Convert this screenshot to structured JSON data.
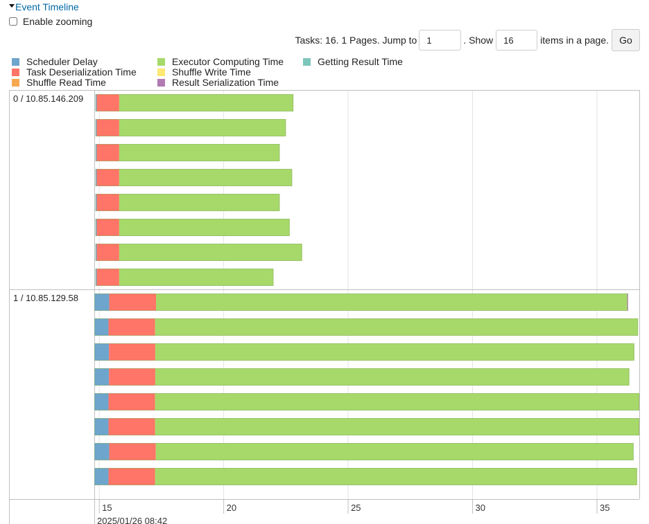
{
  "section": {
    "title": "Event Timeline"
  },
  "zoom": {
    "label": "Enable zooming",
    "checked": false
  },
  "pager": {
    "prefix": "Tasks: 16. 1 Pages. Jump to",
    "page_value": "1",
    "mid": ". Show",
    "size_value": "16",
    "suffix": "items in a page.",
    "go_label": "Go"
  },
  "legend": [
    {
      "label": "Scheduler Delay",
      "color": "#6ea5cc"
    },
    {
      "label": "Task Deserialization Time",
      "color": "#ff7567"
    },
    {
      "label": "Shuffle Read Time",
      "color": "#f6a850"
    },
    {
      "label": "Executor Computing Time",
      "color": "#a6d96a"
    },
    {
      "label": "Shuffle Write Time",
      "color": "#ffe873"
    },
    {
      "label": "Result Serialization Time",
      "color": "#b27ab3"
    },
    {
      "label": "Getting Result Time",
      "color": "#7cc6bc"
    }
  ],
  "chart_data": {
    "type": "timeline",
    "x_unit": "seconds after 2025/01/26 08:42",
    "x_range": [
      14.8,
      36.7
    ],
    "x_ticks": [
      "15",
      "20",
      "25",
      "30",
      "35"
    ],
    "date_label": "2025/01/26 08:42",
    "groups": [
      {
        "name": "0 / 10.85.146.209",
        "tasks": [
          {
            "start": 14.85,
            "phases": [
              0.05,
              0.9,
              0,
              7.0,
              0,
              0,
              0
            ]
          },
          {
            "start": 14.85,
            "phases": [
              0.05,
              0.9,
              0,
              6.7,
              0,
              0,
              0
            ]
          },
          {
            "start": 14.85,
            "phases": [
              0.05,
              0.9,
              0,
              6.45,
              0,
              0,
              0
            ]
          },
          {
            "start": 14.85,
            "phases": [
              0.05,
              0.9,
              0,
              6.95,
              0,
              0,
              0
            ]
          },
          {
            "start": 14.85,
            "phases": [
              0.05,
              0.9,
              0,
              6.45,
              0,
              0,
              0
            ]
          },
          {
            "start": 14.85,
            "phases": [
              0.05,
              0.9,
              0,
              6.85,
              0,
              0,
              0
            ]
          },
          {
            "start": 14.85,
            "phases": [
              0.05,
              0.9,
              0,
              7.35,
              0,
              0,
              0
            ]
          },
          {
            "start": 14.85,
            "phases": [
              0.05,
              0.9,
              0,
              6.2,
              0,
              0,
              0
            ]
          }
        ]
      },
      {
        "name": "1 / 10.85.129.58",
        "tasks": [
          {
            "start": 14.8,
            "phases": [
              0.6,
              1.88,
              0,
              18.93,
              0,
              0.04,
              0
            ]
          },
          {
            "start": 14.8,
            "phases": [
              0.57,
              1.87,
              0,
              19.41,
              0,
              0,
              0
            ]
          },
          {
            "start": 14.8,
            "phases": [
              0.59,
              1.86,
              0,
              19.25,
              0,
              0,
              0
            ]
          },
          {
            "start": 14.8,
            "phases": [
              0.59,
              1.86,
              0,
              19.05,
              0,
              0,
              0
            ]
          },
          {
            "start": 14.8,
            "phases": [
              0.57,
              1.87,
              0,
              19.46,
              0,
              0,
              0
            ]
          },
          {
            "start": 14.8,
            "phases": [
              0.57,
              1.87,
              0,
              19.5,
              0,
              0,
              0
            ]
          },
          {
            "start": 14.8,
            "phases": [
              0.6,
              1.87,
              0,
              19.2,
              0,
              0,
              0
            ]
          },
          {
            "start": 14.8,
            "phases": [
              0.57,
              1.87,
              0,
              19.37,
              0,
              0,
              0
            ]
          }
        ]
      }
    ]
  }
}
